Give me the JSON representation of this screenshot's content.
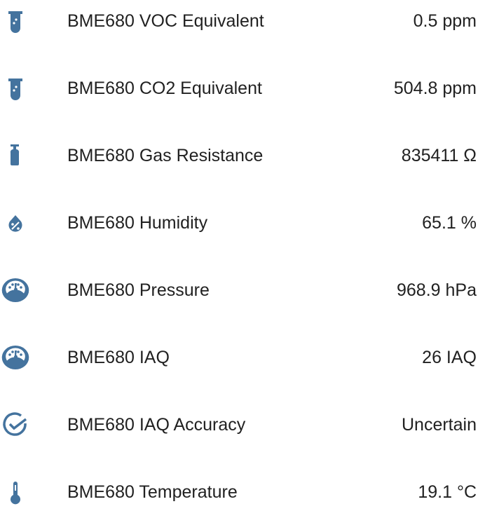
{
  "icon_color": "#44739e",
  "entities": [
    {
      "name": "BME680 VOC Equivalent",
      "value": "0.5 ppm",
      "icon": "test-tube-icon"
    },
    {
      "name": "BME680 CO2 Equivalent",
      "value": "504.8 ppm",
      "icon": "test-tube-icon"
    },
    {
      "name": "BME680 Gas Resistance",
      "value": "835411 Ω",
      "icon": "gas-cylinder-icon"
    },
    {
      "name": "BME680 Humidity",
      "value": "65.1 %",
      "icon": "water-percent-icon"
    },
    {
      "name": "BME680 Pressure",
      "value": "968.9 hPa",
      "icon": "gauge-icon"
    },
    {
      "name": "BME680 IAQ",
      "value": "26 IAQ",
      "icon": "gauge-icon"
    },
    {
      "name": "BME680 IAQ Accuracy",
      "value": "Uncertain",
      "icon": "check-circle-outline-icon"
    },
    {
      "name": "BME680 Temperature",
      "value": "19.1 °C",
      "icon": "thermometer-icon"
    }
  ]
}
